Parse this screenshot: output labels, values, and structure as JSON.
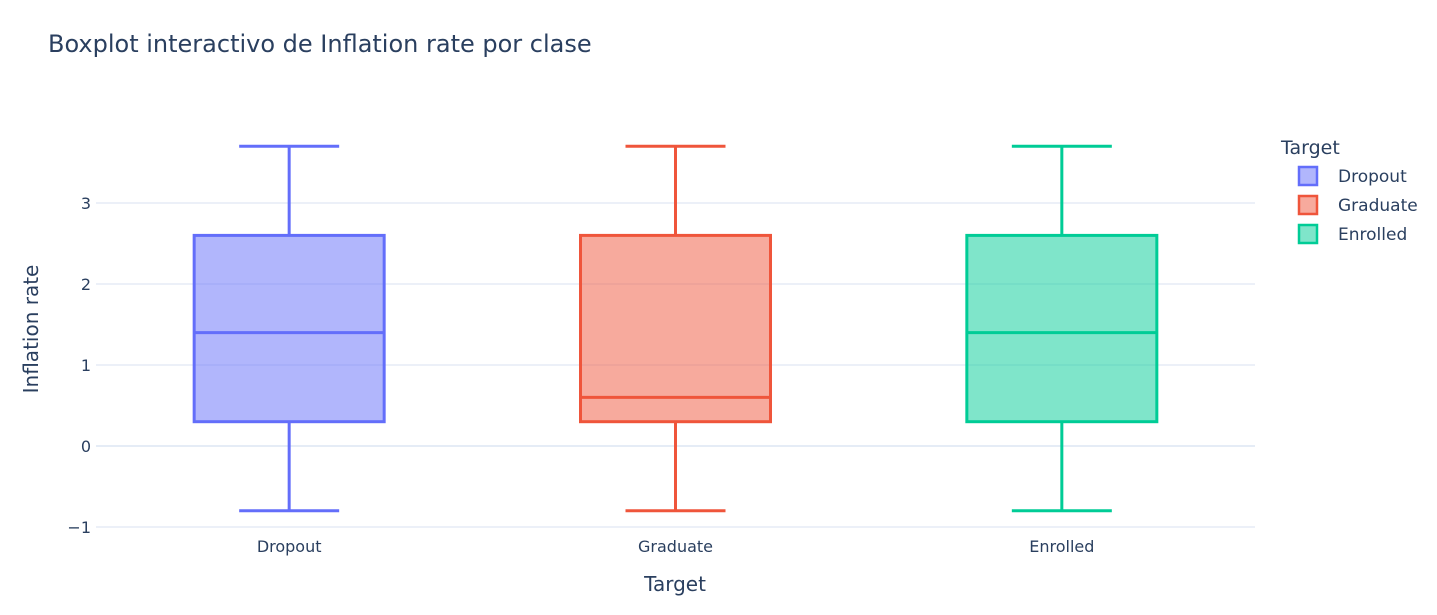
{
  "chart_data": {
    "type": "box",
    "title": "Boxplot interactivo de Inflation rate por clase",
    "xlabel": "Target",
    "ylabel": "Inflation rate",
    "ylim": [
      -1.1,
      3.95
    ],
    "yticks": [
      -1,
      0,
      1,
      2,
      3
    ],
    "ytick_labels": [
      "−1",
      "0",
      "1",
      "2",
      "3"
    ],
    "grid": true,
    "legend": {
      "title": "Target",
      "placement": "top-right"
    },
    "categories": [
      "Dropout",
      "Graduate",
      "Enrolled"
    ],
    "series": [
      {
        "name": "Dropout",
        "color": "#636efa",
        "min": -0.8,
        "q1": 0.3,
        "median": 1.4,
        "q3": 2.6,
        "max": 3.7
      },
      {
        "name": "Graduate",
        "color": "#ef553b",
        "min": -0.8,
        "q1": 0.3,
        "median": 0.6,
        "q3": 2.6,
        "max": 3.7
      },
      {
        "name": "Enrolled",
        "color": "#00cc96",
        "min": -0.8,
        "q1": 0.3,
        "median": 1.4,
        "q3": 2.6,
        "max": 3.7
      }
    ]
  }
}
